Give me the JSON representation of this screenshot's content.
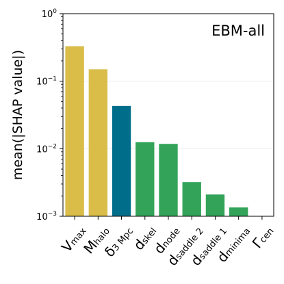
{
  "chart_data": {
    "type": "bar",
    "annotation": "EBM-all",
    "ylabel": "mean(|SHAP value|)",
    "yscale": "log",
    "ylim": [
      0.001,
      1
    ],
    "y_ticks": [
      {
        "value": 0.001,
        "base": "10",
        "exp": "−3"
      },
      {
        "value": 0.01,
        "base": "10",
        "exp": "−2"
      },
      {
        "value": 0.1,
        "base": "10",
        "exp": "−1"
      },
      {
        "value": 1,
        "base": "10",
        "exp": "0"
      }
    ],
    "grid": "horizontal major lines",
    "categories": [
      {
        "main": "V",
        "sub": "max"
      },
      {
        "main": "M",
        "sub": "halo"
      },
      {
        "main": "δ",
        "sub": "3 Mpc"
      },
      {
        "main": "d",
        "sub": "skel"
      },
      {
        "main": "d",
        "sub": "node"
      },
      {
        "main": "d",
        "sub": "saddle 2"
      },
      {
        "main": "d",
        "sub": "saddle 1"
      },
      {
        "main": "d",
        "sub": "minima"
      },
      {
        "main": "Γ",
        "sub": "cen"
      }
    ],
    "values": [
      0.33,
      0.15,
      0.043,
      0.0125,
      0.0118,
      0.0032,
      0.0021,
      0.00135,
      0.001
    ],
    "colors": [
      "#d9bd48",
      "#d9bd48",
      "#006d8a",
      "#33a35a",
      "#33a35a",
      "#33a35a",
      "#33a35a",
      "#33a35a",
      "#33a35a"
    ]
  }
}
